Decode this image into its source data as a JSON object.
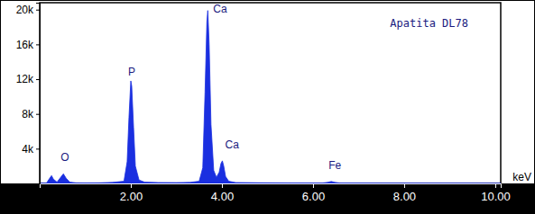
{
  "chart_data": {
    "type": "area",
    "title": "Apatita DL78",
    "xlabel": "keV",
    "color": "#1a2fe0",
    "x": [
      0.0,
      0.15,
      0.22,
      0.26,
      0.3,
      0.38,
      0.46,
      0.52,
      0.58,
      0.66,
      0.8,
      1.0,
      1.3,
      1.6,
      1.85,
      1.92,
      1.96,
      2.0,
      2.02,
      2.06,
      2.1,
      2.18,
      2.3,
      2.6,
      3.0,
      3.3,
      3.5,
      3.58,
      3.63,
      3.67,
      3.69,
      3.72,
      3.76,
      3.82,
      3.88,
      3.94,
      3.98,
      4.01,
      4.04,
      4.08,
      4.15,
      4.3,
      4.8,
      5.5,
      6.2,
      6.32,
      6.4,
      6.48,
      6.6,
      7.5,
      8.5,
      9.5,
      10.12
    ],
    "values": [
      0,
      50,
      600,
      900,
      500,
      150,
      700,
      1100,
      600,
      150,
      60,
      50,
      60,
      120,
      250,
      2500,
      7600,
      11800,
      11200,
      6500,
      2000,
      400,
      150,
      100,
      90,
      120,
      250,
      1800,
      10500,
      18600,
      19900,
      16000,
      6800,
      1500,
      700,
      1300,
      2300,
      2600,
      2000,
      800,
      250,
      100,
      70,
      50,
      45,
      120,
      220,
      120,
      40,
      30,
      20,
      15,
      10
    ],
    "xlim": [
      0,
      10.12
    ],
    "ylim": [
      0,
      20800
    ],
    "xticks": [
      {
        "value": 2,
        "label": "2.00"
      },
      {
        "value": 4,
        "label": "4.00"
      },
      {
        "value": 6,
        "label": "6.00"
      },
      {
        "value": 8,
        "label": "8.00"
      },
      {
        "value": 10,
        "label": "10.00"
      }
    ],
    "yticks": [
      {
        "value": 4000,
        "label": "4k"
      },
      {
        "value": 8000,
        "label": "8k"
      },
      {
        "value": 12000,
        "label": "12k"
      },
      {
        "value": 16000,
        "label": "16k"
      },
      {
        "value": 20000,
        "label": "20k"
      }
    ],
    "annotations": [
      {
        "text": "O",
        "x": 0.52,
        "y": 1100
      },
      {
        "text": "P",
        "x": 2.0,
        "y": 11800
      },
      {
        "text": "Ca",
        "x": 3.69,
        "y": 19900
      },
      {
        "text": "Ca",
        "x": 4.01,
        "y": 2600
      },
      {
        "text": "Fe",
        "x": 6.4,
        "y": 220
      }
    ]
  }
}
